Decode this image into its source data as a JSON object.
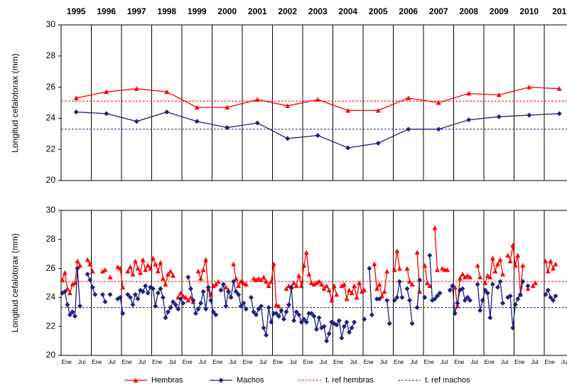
{
  "chart_data": [
    {
      "type": "line",
      "ylabel": "Longitud cefalotorax (mm)",
      "categories": [
        "1995",
        "1996",
        "1997",
        "1998",
        "1999",
        "2000",
        "2001",
        "2002",
        "2003",
        "2004",
        "2005",
        "2006",
        "2007",
        "2008",
        "2009",
        "2010",
        "201"
      ],
      "series": [
        {
          "color": "#ff0000",
          "marker": "triangle",
          "values": [
            25.3,
            25.7,
            25.9,
            25.7,
            24.7,
            24.7,
            25.2,
            24.8,
            25.2,
            24.5,
            24.5,
            25.3,
            25.0,
            25.6,
            25.5,
            26.0,
            25.9
          ]
        },
        {
          "color": "#1a237e",
          "marker": "diamond",
          "values": [
            24.4,
            24.3,
            23.8,
            24.4,
            23.8,
            23.4,
            23.7,
            22.7,
            22.9,
            22.1,
            22.4,
            23.3,
            23.3,
            23.9,
            24.1,
            24.2,
            24.3
          ]
        }
      ],
      "reference_values": [
        25.1,
        23.3
      ],
      "ylim": [
        20,
        30
      ],
      "yticks": [
        20,
        22,
        24,
        26,
        28,
        30
      ]
    },
    {
      "type": "line",
      "ylabel": "Longitud cefalotorax (mm)",
      "categories": [
        "Ene",
        null,
        null,
        null,
        null,
        null,
        "Jul",
        null,
        null,
        null,
        null,
        null,
        "Ene",
        null,
        null,
        null,
        null,
        null,
        "Jul",
        null,
        null,
        null,
        null,
        null,
        "Ene",
        null,
        null,
        null,
        null,
        null,
        "Jul",
        null,
        null,
        null,
        null,
        null,
        "Ene",
        null,
        null,
        null,
        null,
        null,
        "Jul",
        null,
        null,
        null,
        null,
        null,
        "Ene",
        null,
        null,
        null,
        null,
        null,
        "Jul",
        null,
        null,
        null,
        null,
        null,
        "Ene",
        null,
        null,
        null,
        null,
        null,
        "Jul",
        null,
        null,
        null,
        null,
        null,
        "Ene",
        null,
        null,
        null,
        null,
        null,
        "Jul",
        null,
        null,
        null,
        null,
        null,
        "Ene",
        null,
        null,
        null,
        null,
        null,
        "Jul",
        null,
        null,
        null,
        null,
        null,
        "Ene",
        null,
        null,
        null,
        null,
        null,
        "Jul",
        null,
        null,
        null,
        null,
        null,
        "Ene",
        null,
        null,
        null,
        null,
        null,
        "Jul",
        null,
        null,
        null,
        null,
        null,
        "Ene",
        null,
        null,
        null,
        null,
        null,
        "Jul",
        null,
        null,
        null,
        null,
        null,
        "Ene",
        null,
        null,
        null,
        null,
        null,
        "Jul",
        null,
        null,
        null,
        null,
        null,
        "Ene",
        null,
        null,
        null,
        null,
        null,
        "Jul",
        null,
        null,
        null,
        null,
        null,
        "Ene",
        null,
        null,
        null,
        null,
        null,
        "Jul",
        null,
        null,
        null,
        null,
        null,
        "Ene",
        null,
        null,
        null,
        null,
        null,
        "Jul",
        null,
        null,
        null,
        null,
        null,
        "Ene",
        null,
        null,
        null,
        null,
        null,
        "Jul",
        null,
        null,
        null,
        null,
        null,
        "Ene",
        null,
        null,
        null,
        null,
        null,
        "Jul"
      ],
      "series": [
        {
          "name": "Hembras",
          "color": "#ff0000",
          "marker": "triangle",
          "values": [
            25.2,
            25.7,
            24.6,
            24.3,
            24.9,
            25.0,
            26.5,
            26.2,
            null,
            null,
            26.6,
            26.3,
            25.8,
            null,
            null,
            null,
            25.8,
            25.9,
            null,
            25.4,
            null,
            null,
            26.1,
            26.0,
            24.7,
            null,
            25.8,
            26.1,
            25.6,
            26.5,
            26.0,
            25.7,
            26.6,
            25.9,
            26.2,
            26.0,
            26.7,
            26.3,
            25.8,
            26.4,
            25.3,
            24.9,
            25.6,
            25.8,
            25.5,
            null,
            24.0,
            24.3,
            24.1,
            24.0,
            23.8,
            24.0,
            23.7,
            null,
            25.8,
            25.3,
            25.9,
            26.6,
            24.6,
            24.2,
            24.8,
            24.9,
            25.1,
            null,
            null,
            24.7,
            24.5,
            null,
            26.3,
            25.3,
            24.8,
            25.1,
            25.0,
            24.9,
            null,
            null,
            25.3,
            25.2,
            25.3,
            25.2,
            25.4,
            25.1,
            24.8,
            25.1,
            26.3,
            23.5,
            23.4,
            null,
            null,
            24.6,
            24.8,
            24.7,
            25.0,
            24.8,
            25.5,
            24.8,
            26.2,
            27.1,
            25.6,
            25.0,
            24.9,
            25.0,
            25.1,
            24.9,
            24.6,
            24.8,
            24.5,
            23.8,
            24.8,
            24.2,
            null,
            24.8,
            24.9,
            23.9,
            24.5,
            24.3,
            24.8,
            24.0,
            25.0,
            24.4,
            24.5,
            null,
            null,
            null,
            26.3,
            24.6,
            24.9,
            24.1,
            24.4,
            25.8,
            null,
            null,
            25.9,
            27.2,
            26.0,
            null,
            null,
            26.0,
            25.1,
            24.9,
            null,
            27.1,
            24.4,
            null,
            26.2,
            25.0,
            24.8,
            null,
            28.8,
            25.9,
            null,
            26.0,
            25.9,
            25.9,
            null,
            null,
            24.7,
            23.4,
            25.3,
            25.6,
            25.4,
            25.5,
            25.4,
            null,
            null,
            26.2,
            25.4,
            null,
            25.0,
            25.5,
            25.4,
            26.7,
            25.8,
            26.3,
            26.6,
            25.6,
            null,
            26.9,
            26.5,
            27.6,
            26.2,
            26.9,
            24.2,
            26.2,
            null,
            24.6,
            null,
            24.8,
            25.0,
            null,
            null,
            null,
            26.5,
            25.8,
            26.5,
            26.0,
            26.3,
            null,
            null
          ]
        },
        {
          "name": "Machos",
          "color": "#1a237e",
          "marker": "diamond",
          "values": [
            24.3,
            24.4,
            23.5,
            22.8,
            23.0,
            22.7,
            26.0,
            23.4,
            null,
            null,
            25.6,
            25.2,
            24.7,
            24.2,
            null,
            null,
            24.2,
            23.7,
            null,
            24.2,
            null,
            null,
            23.9,
            24.0,
            22.9,
            null,
            24.2,
            24.0,
            23.5,
            24.2,
            23.9,
            24.5,
            24.4,
            24.8,
            24.3,
            24.7,
            24.6,
            23.4,
            24.3,
            24.6,
            24.0,
            22.6,
            23.0,
            23.3,
            23.7,
            23.5,
            23.2,
            23.9,
            23.6,
            null,
            25.4,
            24.6,
            23.8,
            22.9,
            23.2,
            23.6,
            24.4,
            23.2,
            24.7,
            23.8,
            23.0,
            22.8,
            null,
            24.5,
            24.9,
            23.4,
            24.4,
            24.0,
            25.1,
            24.4,
            24.2,
            23.4,
            23.6,
            23.2,
            null,
            24.0,
            23.0,
            22.8,
            23.2,
            23.4,
            21.9,
            21.4,
            23.3,
            22.3,
            22.9,
            22.9,
            22.7,
            23.1,
            22.5,
            23.0,
            23.5,
            24.7,
            22.4,
            23.0,
            22.8,
            22.3,
            22.5,
            22.3,
            22.9,
            22.9,
            22.7,
            21.8,
            22.6,
            21.9,
            22.0,
            21.0,
            21.5,
            22.3,
            22.2,
            22.1,
            22.4,
            21.2,
            22.0,
            22.3,
            21.6,
            21.9,
            22.3,
            null,
            null,
            null,
            22.5,
            null,
            26.0,
            22.8,
            null,
            23.9,
            23.9,
            null,
            null,
            23.8,
            22.2,
            null,
            23.8,
            24.0,
            25.1,
            24.0,
            null,
            24.6,
            23.8,
            22.2,
            null,
            23.3,
            25.2,
            null,
            24.0,
            null,
            26.9,
            23.8,
            23.9,
            24.1,
            24.3,
            null,
            null,
            null,
            24.5,
            24.8,
            22.9,
            23.6,
            24.5,
            24.6,
            23.8,
            24.0,
            23.8,
            null,
            null,
            24.9,
            23.1,
            23.8,
            24.5,
            24.3,
            22.6,
            24.9,
            null,
            24.7,
            25.1,
            23.6,
            null,
            24.0,
            24.1,
            21.9,
            23.5,
            23.9,
            24.2,
            25.1,
            null,
            24.8,
            null,
            null,
            null,
            null,
            null,
            null,
            24.2,
            24.5,
            24.0,
            23.8,
            24.1,
            null,
            null
          ]
        }
      ],
      "reference_lines": [
        {
          "name": "t. ref hembras",
          "color": "#ff0000",
          "value": 25.1
        },
        {
          "name": "t. ref machos",
          "color": "#1a237e",
          "value": 23.3
        }
      ],
      "ylim": [
        20,
        30
      ],
      "yticks": [
        20,
        22,
        24,
        26,
        28,
        30
      ],
      "legend": "bottom"
    }
  ]
}
